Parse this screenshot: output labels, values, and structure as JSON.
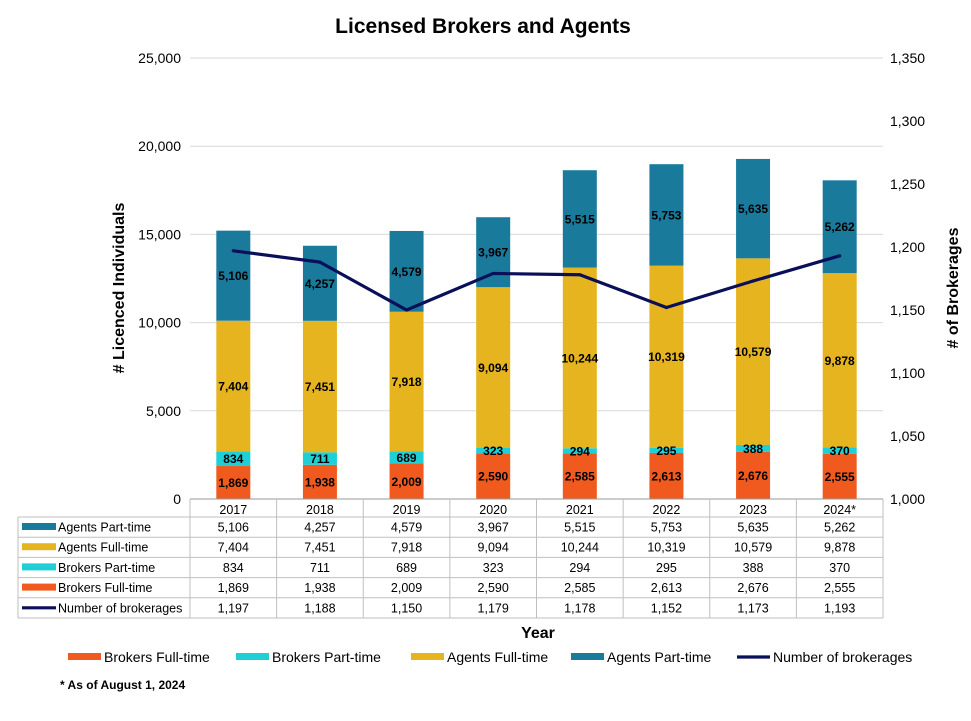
{
  "chart_data": {
    "type": "bar",
    "title": "Licensed Brokers and Agents",
    "xlabel": "Year",
    "ylabel": "# Licenced Individuals",
    "y2label": "# of Brokerages",
    "ylim": [
      0,
      25000
    ],
    "y2lim": [
      1000,
      1350
    ],
    "yticks": [
      "0",
      "5,000",
      "10,000",
      "15,000",
      "20,000",
      "25,000"
    ],
    "y2ticks": [
      "1,000",
      "1,050",
      "1,100",
      "1,150",
      "1,200",
      "1,250",
      "1,300",
      "1,350"
    ],
    "categories": [
      "2017",
      "2018",
      "2019",
      "2020",
      "2021",
      "2022",
      "2023",
      "2024*"
    ],
    "series": [
      {
        "name": "Brokers Full-time",
        "kind": "bar",
        "color": "#F05A1E",
        "values": [
          1869,
          1938,
          2009,
          2590,
          2585,
          2613,
          2676,
          2555
        ]
      },
      {
        "name": "Brokers Part-time",
        "kind": "bar",
        "color": "#1ECFD6",
        "values": [
          834,
          711,
          689,
          323,
          294,
          295,
          388,
          370
        ]
      },
      {
        "name": "Agents Full-time",
        "kind": "bar",
        "color": "#E6B41E",
        "values": [
          7404,
          7451,
          7918,
          9094,
          10244,
          10319,
          10579,
          9878
        ]
      },
      {
        "name": "Agents Part-time",
        "kind": "bar",
        "color": "#1A7A9C",
        "values": [
          5106,
          4257,
          4579,
          3967,
          5515,
          5753,
          5635,
          5262
        ]
      },
      {
        "name": "Number of brokerages",
        "kind": "line",
        "axis": "secondary",
        "color": "#0A0F5A",
        "values": [
          1197,
          1188,
          1150,
          1179,
          1178,
          1152,
          1173,
          1193
        ]
      }
    ],
    "table_rows": [
      {
        "label": "Agents Part-time",
        "series": 3,
        "cells": [
          "5,106",
          "4,257",
          "4,579",
          "3,967",
          "5,515",
          "5,753",
          "5,635",
          "5,262"
        ]
      },
      {
        "label": "Agents Full-time",
        "series": 2,
        "cells": [
          "7,404",
          "7,451",
          "7,918",
          "9,094",
          "10,244",
          "10,319",
          "10,579",
          "9,878"
        ]
      },
      {
        "label": "Brokers Part-time",
        "series": 1,
        "cells": [
          "834",
          "711",
          "689",
          "323",
          "294",
          "295",
          "388",
          "370"
        ]
      },
      {
        "label": "Brokers Full-time",
        "series": 0,
        "cells": [
          "1,869",
          "1,938",
          "2,009",
          "2,590",
          "2,585",
          "2,613",
          "2,676",
          "2,555"
        ]
      },
      {
        "label": "Number of brokerages",
        "series": 4,
        "cells": [
          "1,197",
          "1,188",
          "1,150",
          "1,179",
          "1,178",
          "1,152",
          "1,173",
          "1,193"
        ]
      }
    ],
    "bar_labels": [
      [
        "1,869",
        "1,938",
        "2,009",
        "2,590",
        "2,585",
        "2,613",
        "2,676",
        "2,555"
      ],
      [
        "834",
        "711",
        "689",
        "323",
        "294",
        "295",
        "388",
        "370"
      ],
      [
        "7,404",
        "7,451",
        "7,918",
        "9,094",
        "10,244",
        "10,319",
        "10,579",
        "9,878"
      ],
      [
        "5,106",
        "4,257",
        "4,579",
        "3,967",
        "5,515",
        "5,753",
        "5,635",
        "5,262"
      ]
    ],
    "legend_order": [
      0,
      1,
      2,
      3,
      4
    ],
    "legend_position": "bottom",
    "grid": true
  },
  "footnote": "* As of August 1, 2024"
}
